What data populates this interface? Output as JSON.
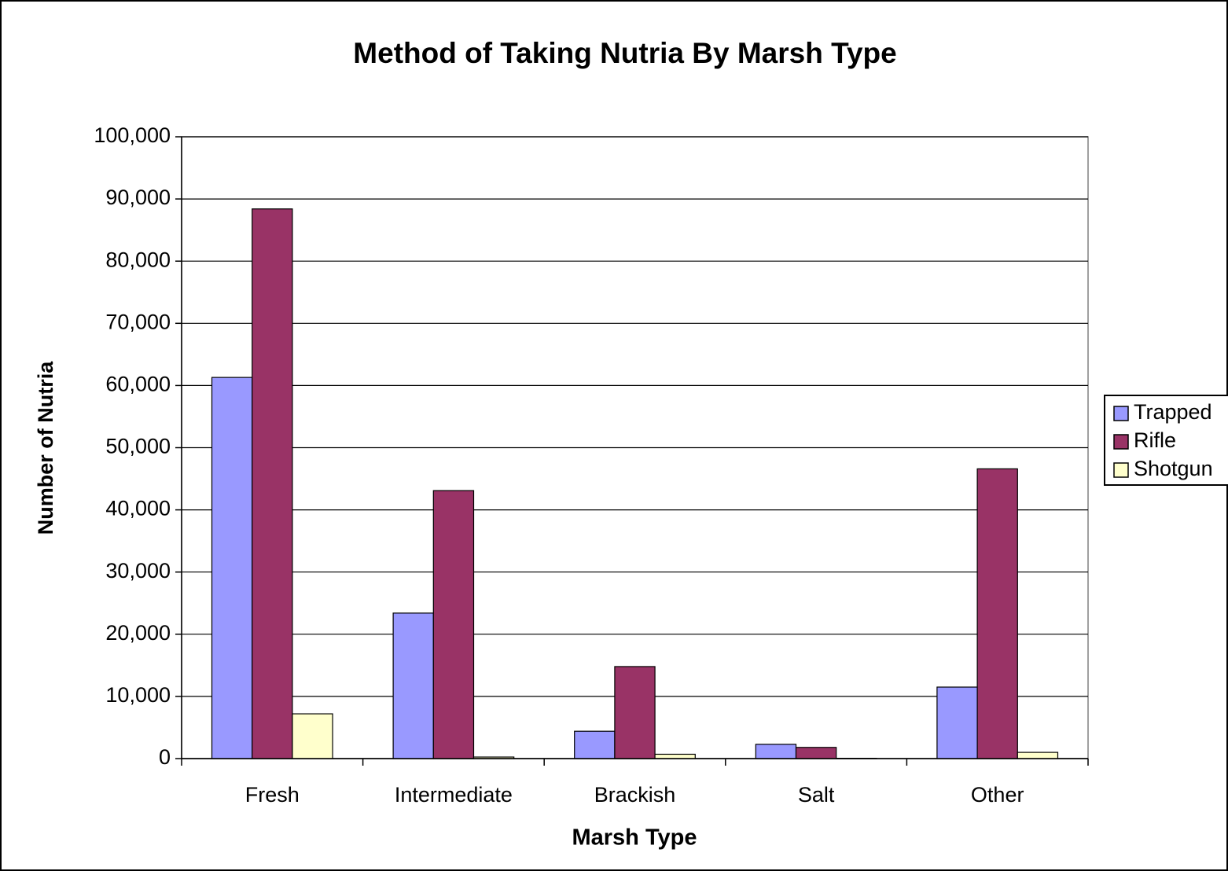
{
  "chart_data": {
    "type": "bar",
    "title": "Method of Taking Nutria By Marsh Type",
    "x_label": "Marsh Type",
    "y_label": "Number of Nutria",
    "categories": [
      "Fresh",
      "Intermediate",
      "Brackish",
      "Salt",
      "Other"
    ],
    "series": [
      {
        "name": "Trapped",
        "color": "#9999ff",
        "values": [
          61300,
          23400,
          4400,
          2300,
          11500
        ]
      },
      {
        "name": "Rifle",
        "color": "#993366",
        "values": [
          88400,
          43100,
          14800,
          1800,
          46600
        ]
      },
      {
        "name": "Shotgun",
        "color": "#ffffcc",
        "values": [
          7200,
          250,
          700,
          50,
          1000
        ]
      }
    ],
    "ylim": [
      0,
      100000
    ],
    "yticks": [
      0,
      {
        "value": 10000,
        "label": "10,000"
      },
      {
        "value": 20000,
        "label": "20,000"
      },
      {
        "value": 30000,
        "label": "30,000"
      },
      {
        "value": 40000,
        "label": "40,000"
      },
      {
        "value": 50000,
        "label": "50,000"
      },
      {
        "value": 60000,
        "label": "60,000"
      },
      {
        "value": 70000,
        "label": "70,000"
      },
      {
        "value": 80000,
        "label": "80,000"
      },
      {
        "value": 90000,
        "label": "90,000"
      },
      {
        "value": 100000,
        "label": "100,000"
      }
    ],
    "grid": true,
    "legend": "right"
  }
}
